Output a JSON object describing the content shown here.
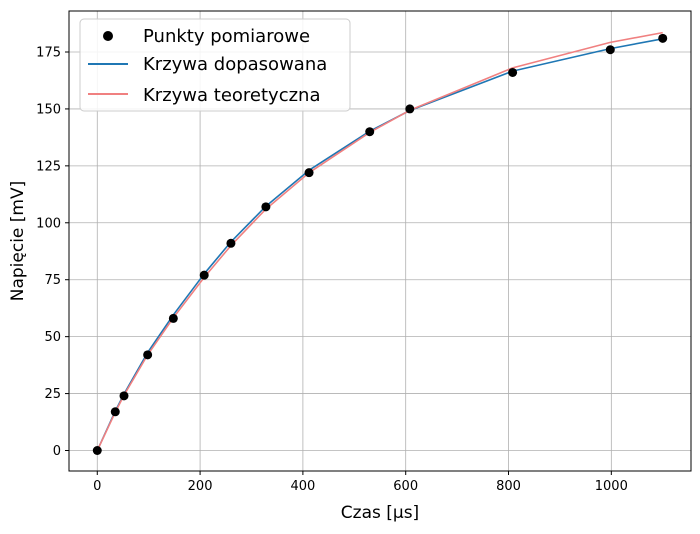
{
  "chart_data": {
    "type": "scatter",
    "xlabel": "Czas [μs]",
    "ylabel": "Napięcie [mV]",
    "xlim": [
      -55,
      1155
    ],
    "ylim": [
      -9,
      193
    ],
    "x_ticks": [
      0,
      200,
      400,
      600,
      800,
      1000
    ],
    "y_ticks": [
      0,
      25,
      50,
      75,
      100,
      125,
      150,
      175
    ],
    "grid": true,
    "legend_position": "top-left",
    "series": [
      {
        "name": "Punkty pomiarowe",
        "kind": "scatter",
        "color": "#000000",
        "x": [
          0,
          35,
          52,
          98,
          148,
          208,
          260,
          328,
          412,
          530,
          608,
          808,
          998,
          1100
        ],
        "y": [
          0,
          17,
          24,
          42,
          58,
          77,
          91,
          107,
          122,
          140,
          150,
          166,
          176,
          181
        ]
      },
      {
        "name": "Krzywa dopasowana",
        "kind": "line",
        "color": "#1f77b4",
        "x": [
          0,
          35,
          52,
          98,
          148,
          208,
          260,
          328,
          412,
          530,
          608,
          808,
          998,
          1100
        ],
        "y": [
          0,
          17.3,
          24.8,
          43.0,
          59.6,
          77.6,
          91.6,
          107.3,
          123.1,
          140.2,
          149.3,
          166.6,
          176.5,
          180.8
        ]
      },
      {
        "name": "Krzywa teoretyczna",
        "kind": "line",
        "color": "#f08080",
        "x": [
          0,
          35,
          52,
          98,
          148,
          208,
          260,
          328,
          412,
          530,
          608,
          808,
          998,
          1100
        ],
        "y": [
          0,
          16.8,
          24.3,
          42.0,
          58.3,
          76.0,
          90.0,
          106.0,
          122.0,
          139.7,
          149.4,
          168.0,
          179.2,
          183.5
        ]
      }
    ]
  }
}
